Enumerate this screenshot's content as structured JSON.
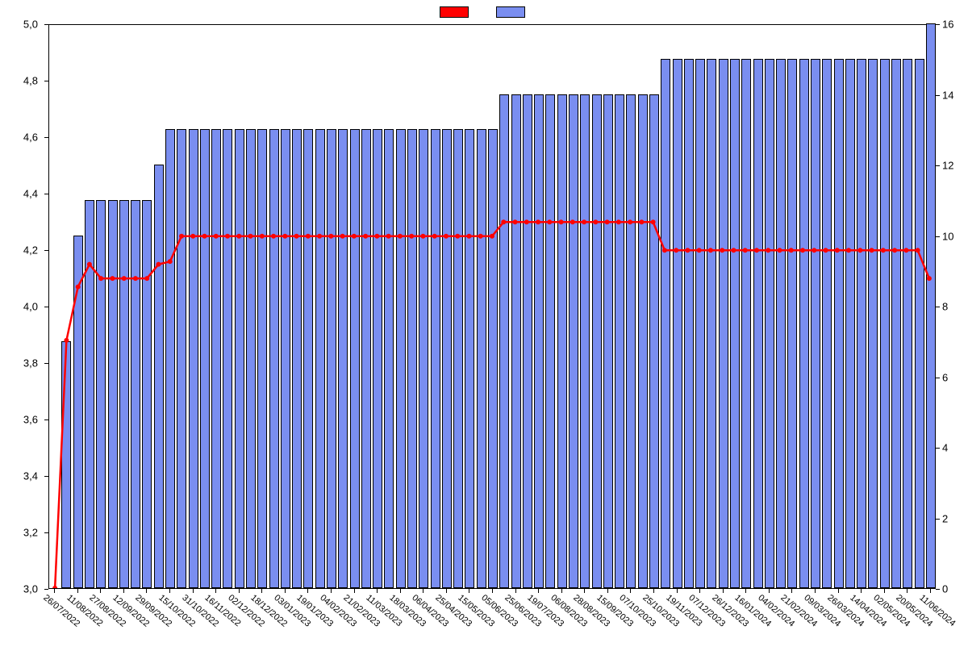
{
  "chart": {
    "type": "bar+line",
    "background_color": "#ffffff",
    "plot_border_color": "#000000",
    "legend": {
      "series": [
        {
          "label": "",
          "color": "#ff0000",
          "type": "line"
        },
        {
          "label": "",
          "color": "#7a8ef0",
          "type": "bar"
        }
      ]
    },
    "x_axis": {
      "labels": [
        "26/07/2022",
        "11/08/2022",
        "27/08/2022",
        "12/09/2022",
        "29/09/2022",
        "15/10/2022",
        "31/10/2022",
        "16/11/2022",
        "02/12/2022",
        "18/12/2022",
        "03/01/2023",
        "19/01/2023",
        "04/02/2023",
        "21/02/2023",
        "11/03/2023",
        "18/03/2023",
        "06/04/2023",
        "25/04/2023",
        "15/05/2023",
        "05/06/2023",
        "25/06/2023",
        "19/07/2023",
        "06/08/2023",
        "28/08/2023",
        "15/09/2023",
        "07/10/2023",
        "25/10/2023",
        "19/11/2023",
        "07/12/2023",
        "26/12/2023",
        "16/01/2024",
        "04/02/2024",
        "21/02/2024",
        "09/03/2024",
        "26/03/2024",
        "14/04/2024",
        "02/05/2024",
        "20/05/2024",
        "11/06/2024"
      ],
      "tick_fontsize": 11,
      "rotation": 40
    },
    "y_axis_left": {
      "min": 3.0,
      "max": 5.0,
      "ticks": [
        3.0,
        3.2,
        3.4,
        3.6,
        3.8,
        4.0,
        4.2,
        4.4,
        4.6,
        4.8,
        5.0
      ],
      "tick_labels": [
        "3,0",
        "3,2",
        "3,4",
        "3,6",
        "3,8",
        "4,0",
        "4,2",
        "4,4",
        "4,6",
        "4,8",
        "5,0"
      ],
      "tick_fontsize": 13
    },
    "y_axis_right": {
      "min": 0,
      "max": 16,
      "ticks": [
        0,
        2,
        4,
        6,
        8,
        10,
        12,
        14,
        16
      ],
      "tick_labels": [
        "0",
        "2",
        "4",
        "6",
        "8",
        "10",
        "12",
        "14",
        "16"
      ],
      "tick_fontsize": 13
    },
    "bars": {
      "color": "#7a8ef0",
      "border_color": "#000000",
      "border_width": 1,
      "width_fraction": 0.85,
      "values": [
        0,
        7,
        10,
        11,
        11,
        11,
        11,
        11,
        11,
        12,
        13,
        13,
        13,
        13,
        13,
        13,
        13,
        13,
        13,
        13,
        13,
        13,
        13,
        13,
        13,
        13,
        13,
        13,
        13,
        13,
        13,
        13,
        13,
        13,
        13,
        13,
        13,
        13,
        13,
        14,
        14,
        14,
        14,
        14,
        14,
        14,
        14,
        14,
        14,
        14,
        14,
        14,
        14,
        15,
        15,
        15,
        15,
        15,
        15,
        15,
        15,
        15,
        15,
        15,
        15,
        15,
        15,
        15,
        15,
        15,
        15,
        15,
        15,
        15,
        15,
        15,
        16
      ]
    },
    "line": {
      "color": "#ff0000",
      "width": 2.5,
      "marker": "circle",
      "marker_size": 3,
      "values": [
        3.0,
        3.88,
        4.07,
        4.15,
        4.1,
        4.1,
        4.1,
        4.1,
        4.1,
        4.15,
        4.16,
        4.25,
        4.25,
        4.25,
        4.25,
        4.25,
        4.25,
        4.25,
        4.25,
        4.25,
        4.25,
        4.25,
        4.25,
        4.25,
        4.25,
        4.25,
        4.25,
        4.25,
        4.25,
        4.25,
        4.25,
        4.25,
        4.25,
        4.25,
        4.25,
        4.25,
        4.25,
        4.25,
        4.25,
        4.3,
        4.3,
        4.3,
        4.3,
        4.3,
        4.3,
        4.3,
        4.3,
        4.3,
        4.3,
        4.3,
        4.3,
        4.3,
        4.3,
        4.2,
        4.2,
        4.2,
        4.2,
        4.2,
        4.2,
        4.2,
        4.2,
        4.2,
        4.2,
        4.2,
        4.2,
        4.2,
        4.2,
        4.2,
        4.2,
        4.2,
        4.2,
        4.2,
        4.2,
        4.2,
        4.2,
        4.2,
        4.1
      ]
    },
    "n_points": 77,
    "x_tick_every": 2
  }
}
